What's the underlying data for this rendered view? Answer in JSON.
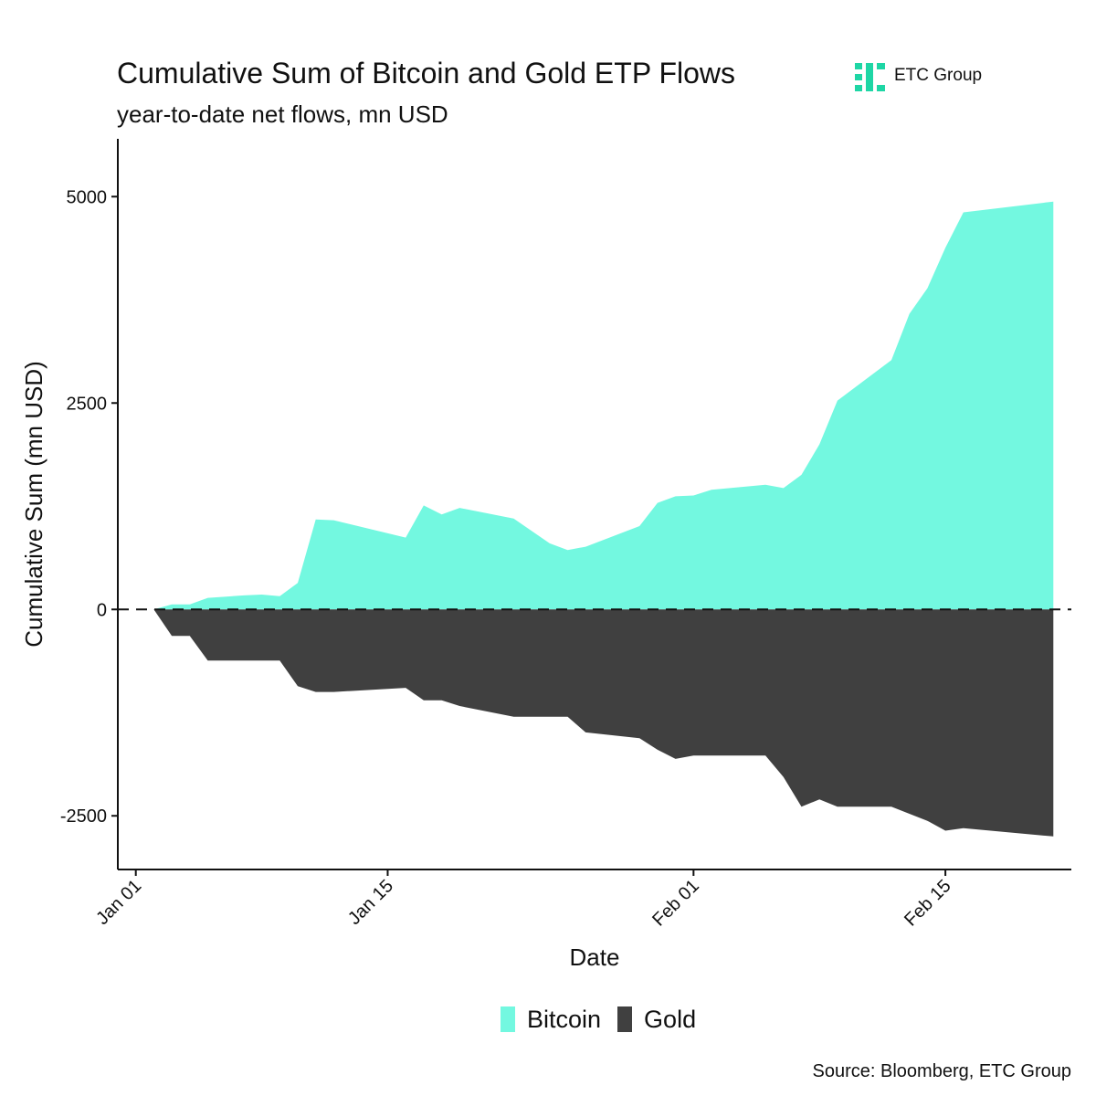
{
  "header": {
    "title": "Cumulative Sum of Bitcoin and Gold ETP Flows",
    "subtitle": "year-to-date net flows, mn USD",
    "brand": "ETC Group",
    "brand_color": "#1ed6a5"
  },
  "footer": {
    "source": "Source: Bloomberg, ETC Group"
  },
  "chart_data": {
    "type": "area",
    "title": "Cumulative Sum of Bitcoin and Gold ETP Flows",
    "subtitle": "year-to-date net flows, mn USD",
    "xlabel": "Date",
    "ylabel": "Cumulative Sum (mn USD)",
    "x_tick_labels": [
      "Jan 01",
      "Jan 15",
      "Feb 01",
      "Feb 15"
    ],
    "x_tick_dates": [
      "2024-01-01",
      "2024-01-15",
      "2024-02-01",
      "2024-02-15"
    ],
    "xlim": [
      "2023-12-31",
      "2024-02-22"
    ],
    "y_ticks": [
      -2500,
      0,
      2500,
      5000
    ],
    "y_tick_labels": [
      "-2500",
      "0",
      "2500",
      "5000"
    ],
    "ylim": [
      -3150,
      5700
    ],
    "reference_line": {
      "y": 0,
      "style": "dashed"
    },
    "grid": false,
    "legend_position": "bottom",
    "series": [
      {
        "name": "Bitcoin",
        "color": "#73f8e0",
        "points": [
          [
            "2024-01-02",
            0
          ],
          [
            "2024-01-03",
            60
          ],
          [
            "2024-01-04",
            60
          ],
          [
            "2024-01-05",
            140
          ],
          [
            "2024-01-07",
            170
          ],
          [
            "2024-01-08",
            180
          ],
          [
            "2024-01-09",
            160
          ],
          [
            "2024-01-10",
            320
          ],
          [
            "2024-01-11",
            1090
          ],
          [
            "2024-01-12",
            1080
          ],
          [
            "2024-01-16",
            870
          ],
          [
            "2024-01-17",
            1260
          ],
          [
            "2024-01-18",
            1150
          ],
          [
            "2024-01-19",
            1230
          ],
          [
            "2024-01-22",
            1100
          ],
          [
            "2024-01-24",
            800
          ],
          [
            "2024-01-25",
            720
          ],
          [
            "2024-01-26",
            760
          ],
          [
            "2024-01-29",
            1010
          ],
          [
            "2024-01-30",
            1290
          ],
          [
            "2024-01-31",
            1370
          ],
          [
            "2024-02-01",
            1380
          ],
          [
            "2024-02-02",
            1450
          ],
          [
            "2024-02-05",
            1510
          ],
          [
            "2024-02-06",
            1470
          ],
          [
            "2024-02-07",
            1630
          ],
          [
            "2024-02-08",
            2000
          ],
          [
            "2024-02-09",
            2530
          ],
          [
            "2024-02-12",
            3020
          ],
          [
            "2024-02-13",
            3580
          ],
          [
            "2024-02-14",
            3890
          ],
          [
            "2024-02-15",
            4380
          ],
          [
            "2024-02-16",
            4810
          ],
          [
            "2024-02-21",
            4940
          ]
        ]
      },
      {
        "name": "Gold",
        "color": "#404040",
        "points": [
          [
            "2024-01-02",
            0
          ],
          [
            "2024-01-03",
            -320
          ],
          [
            "2024-01-04",
            -320
          ],
          [
            "2024-01-05",
            -620
          ],
          [
            "2024-01-09",
            -620
          ],
          [
            "2024-01-10",
            -930
          ],
          [
            "2024-01-11",
            -1000
          ],
          [
            "2024-01-12",
            -1000
          ],
          [
            "2024-01-16",
            -950
          ],
          [
            "2024-01-17",
            -1100
          ],
          [
            "2024-01-18",
            -1100
          ],
          [
            "2024-01-19",
            -1170
          ],
          [
            "2024-01-22",
            -1300
          ],
          [
            "2024-01-25",
            -1300
          ],
          [
            "2024-01-26",
            -1490
          ],
          [
            "2024-01-29",
            -1560
          ],
          [
            "2024-01-30",
            -1700
          ],
          [
            "2024-01-31",
            -1810
          ],
          [
            "2024-02-01",
            -1770
          ],
          [
            "2024-02-05",
            -1770
          ],
          [
            "2024-02-06",
            -2030
          ],
          [
            "2024-02-07",
            -2390
          ],
          [
            "2024-02-08",
            -2300
          ],
          [
            "2024-02-09",
            -2390
          ],
          [
            "2024-02-12",
            -2390
          ],
          [
            "2024-02-14",
            -2560
          ],
          [
            "2024-02-15",
            -2680
          ],
          [
            "2024-02-16",
            -2650
          ],
          [
            "2024-02-21",
            -2750
          ]
        ]
      }
    ]
  }
}
